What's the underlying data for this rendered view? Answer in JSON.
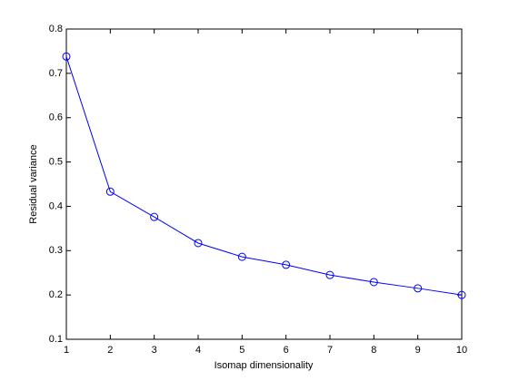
{
  "chart_data": {
    "type": "line",
    "x_label": "Isomap dimensionality",
    "y_label": "Residual variance",
    "x": [
      1,
      2,
      3,
      4,
      5,
      6,
      7,
      8,
      9,
      10
    ],
    "series": [
      {
        "color": "#0000ff",
        "values": [
          0.738,
          0.433,
          0.376,
          0.317,
          0.286,
          0.268,
          0.245,
          0.229,
          0.215,
          0.2
        ]
      }
    ],
    "xlim": [
      1,
      10
    ],
    "xticks": [
      1,
      2,
      3,
      4,
      5,
      6,
      7,
      8,
      9,
      10
    ],
    "ylim": [
      0.1,
      0.8
    ],
    "yticks": [
      0.1,
      0.2,
      0.3,
      0.4,
      0.5,
      0.6,
      0.7,
      0.8
    ],
    "grid": false,
    "marker": "circle"
  }
}
